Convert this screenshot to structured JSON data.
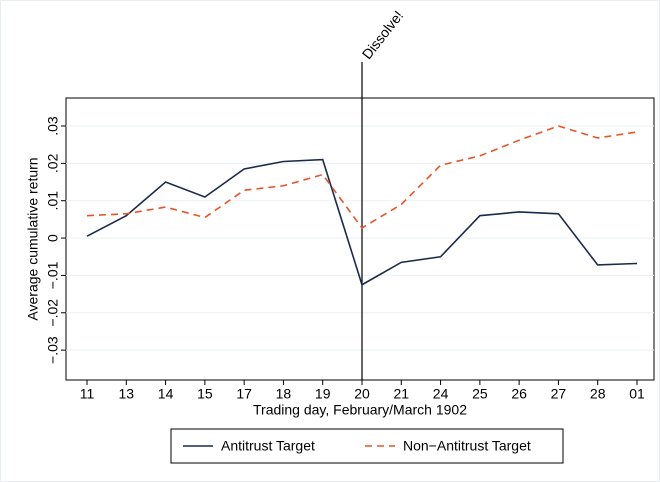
{
  "chart_data": {
    "type": "line",
    "y_label": "Average cumulative return",
    "x_label": "Trading day, February/March 1902",
    "categories": [
      "11",
      "13",
      "14",
      "15",
      "17",
      "18",
      "19",
      "20",
      "21",
      "24",
      "25",
      "26",
      "27",
      "28",
      "01"
    ],
    "series": [
      {
        "name": "Antitrust Target",
        "color": "#1a2b4c",
        "dash": false,
        "values": [
          0.0005,
          0.006,
          0.015,
          0.011,
          0.0185,
          0.0205,
          0.021,
          -0.0125,
          -0.0065,
          -0.005,
          0.006,
          0.007,
          0.0065,
          -0.0072,
          -0.0068
        ]
      },
      {
        "name": "Non−Antitrust Target",
        "color": "#e8542a",
        "dash": true,
        "values": [
          0.006,
          0.0065,
          0.0083,
          0.0055,
          0.0128,
          0.014,
          0.017,
          0.0027,
          0.009,
          0.0195,
          0.022,
          0.0262,
          0.03,
          0.0268,
          0.0284
        ]
      }
    ],
    "annotations": [
      {
        "text": "Dissolve!",
        "x": "20"
      }
    ],
    "ylim": [
      -0.038,
      0.0375
    ],
    "yticks": [
      {
        "value": -0.03,
        "label": "−.03"
      },
      {
        "value": -0.02,
        "label": "−.02"
      },
      {
        "value": -0.01,
        "label": "−.01"
      },
      0,
      {
        "value": 0.01,
        "label": ".01"
      },
      {
        "value": 0.02,
        "label": ".02"
      },
      {
        "value": 0.03,
        "label": ".03"
      }
    ],
    "grid": true,
    "legend": "bottom"
  }
}
